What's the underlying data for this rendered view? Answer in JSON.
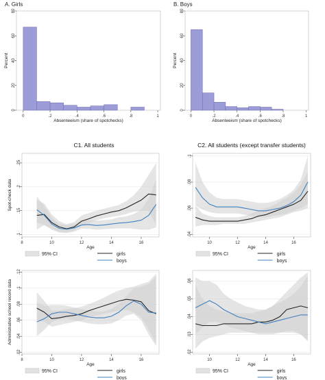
{
  "colors": {
    "histogram_bar": "#9c9cd9",
    "histogram_bar_stroke": "#6b6bb0",
    "girls_line": "#222222",
    "boys_line": "#3f7fbf",
    "ci_fill": "#cfcfcf",
    "axis": "#444444",
    "gridline": "#e8e8e8"
  },
  "chart_data": [
    {
      "id": "girls-hist",
      "type": "bar",
      "panel_label": "A. Girls",
      "xlabel": "Absenteeism (share of spotchecks)",
      "ylabel": "Percent",
      "bin_width": 0.1,
      "bin_starts": [
        0,
        0.1,
        0.2,
        0.3,
        0.4,
        0.5,
        0.6,
        0.7,
        0.8,
        0.9
      ],
      "values": [
        67,
        7,
        6,
        4,
        2.5,
        3.5,
        4.5,
        0,
        2.5,
        0
      ],
      "xlim": [
        -0.05,
        1.02
      ],
      "ylim": [
        0,
        80
      ],
      "xticks": [
        0,
        0.2,
        0.4,
        0.6,
        0.8,
        1
      ],
      "xtick_labels": [
        "0",
        ".2",
        ".4",
        ".6",
        ".8",
        "1"
      ],
      "yticks": [
        0,
        20,
        40,
        60,
        80
      ],
      "ytick_labels": [
        "0",
        "20",
        "40",
        "60",
        "80"
      ]
    },
    {
      "id": "boys-hist",
      "type": "bar",
      "panel_label": "B. Boys",
      "xlabel": "Absenteeism (share of spotchecks)",
      "ylabel": "Percent",
      "bin_width": 0.1,
      "bin_starts": [
        0,
        0.1,
        0.2,
        0.3,
        0.4,
        0.5,
        0.6,
        0.7,
        0.8,
        0.9
      ],
      "values": [
        65,
        14,
        6.5,
        3,
        2,
        3,
        2.5,
        0.8,
        0,
        0
      ],
      "xlim": [
        -0.05,
        1.02
      ],
      "ylim": [
        0,
        80
      ],
      "xticks": [
        0,
        0.2,
        0.4,
        0.6,
        0.8,
        1
      ],
      "xtick_labels": [
        "0",
        ".2",
        ".4",
        ".6",
        ".8",
        "1"
      ],
      "yticks": [
        0,
        20,
        40,
        60,
        80
      ],
      "ytick_labels": [
        "0",
        "20",
        "40",
        "60",
        "80"
      ]
    },
    {
      "id": "c1-spot",
      "type": "line",
      "panel_label": "C1. All students",
      "ylabel": "Spot-check data",
      "xlabel": "Age",
      "xlim": [
        8,
        17.2
      ],
      "ylim": [
        0.095,
        0.27
      ],
      "xticks": [
        8,
        10,
        12,
        14,
        16
      ],
      "xtick_labels": [
        "8",
        "10",
        "12",
        "14",
        "16"
      ],
      "yticks": [
        0.1,
        0.15,
        0.2,
        0.25
      ],
      "ytick_labels": [
        ".1",
        ".15",
        ".2",
        ".25"
      ],
      "x": [
        9,
        9.5,
        10,
        10.5,
        11,
        11.5,
        12,
        12.5,
        13,
        13.5,
        14,
        14.5,
        15,
        15.5,
        16,
        16.5,
        17
      ],
      "series": [
        {
          "name": "girls",
          "values": [
            0.14,
            0.142,
            0.125,
            0.116,
            0.112,
            0.116,
            0.128,
            0.133,
            0.139,
            0.143,
            0.147,
            0.15,
            0.156,
            0.164,
            0.172,
            0.185,
            0.183
          ],
          "ci_low": [
            0.11,
            0.12,
            0.112,
            0.106,
            0.104,
            0.108,
            0.118,
            0.124,
            0.13,
            0.134,
            0.137,
            0.139,
            0.143,
            0.148,
            0.15,
            0.15,
            0.12
          ],
          "ci_high": [
            0.172,
            0.165,
            0.142,
            0.128,
            0.122,
            0.126,
            0.14,
            0.145,
            0.15,
            0.154,
            0.158,
            0.162,
            0.17,
            0.182,
            0.2,
            0.225,
            0.25
          ]
        },
        {
          "name": "boys",
          "values": [
            0.152,
            0.14,
            0.122,
            0.113,
            0.111,
            0.114,
            0.12,
            0.121,
            0.119,
            0.12,
            0.122,
            0.124,
            0.125,
            0.127,
            0.13,
            0.14,
            0.163
          ],
          "ci_low": [
            0.125,
            0.12,
            0.11,
            0.104,
            0.103,
            0.106,
            0.112,
            0.112,
            0.11,
            0.111,
            0.112,
            0.113,
            0.113,
            0.112,
            0.11,
            0.11,
            0.115
          ],
          "ci_high": [
            0.18,
            0.16,
            0.135,
            0.122,
            0.12,
            0.122,
            0.129,
            0.13,
            0.129,
            0.13,
            0.132,
            0.136,
            0.138,
            0.143,
            0.152,
            0.175,
            0.215
          ]
        }
      ]
    },
    {
      "id": "c2-spot",
      "type": "line",
      "panel_label": "C2. All students (except transfer students)",
      "ylabel": "",
      "xlabel": "Age",
      "xlim": [
        8.8,
        17.2
      ],
      "ylim": [
        0.038,
        0.102
      ],
      "xticks": [
        10,
        12,
        14,
        16
      ],
      "xtick_labels": [
        "10",
        "12",
        "14",
        "16"
      ],
      "yticks": [
        0.04,
        0.06,
        0.08,
        0.1
      ],
      "ytick_labels": [
        ".04",
        ".06",
        ".08",
        ".1"
      ],
      "x": [
        9,
        9.5,
        10,
        10.5,
        11,
        11.5,
        12,
        12.5,
        13,
        13.5,
        14,
        14.5,
        15,
        15.5,
        16,
        16.5,
        17
      ],
      "series": [
        {
          "name": "girls",
          "values": [
            0.053,
            0.051,
            0.05,
            0.05,
            0.05,
            0.05,
            0.05,
            0.051,
            0.052,
            0.054,
            0.055,
            0.057,
            0.059,
            0.061,
            0.063,
            0.066,
            0.073
          ],
          "ci_low": [
            0.046,
            0.047,
            0.047,
            0.047,
            0.048,
            0.048,
            0.048,
            0.048,
            0.049,
            0.05,
            0.051,
            0.052,
            0.053,
            0.055,
            0.057,
            0.058,
            0.06
          ],
          "ci_high": [
            0.062,
            0.056,
            0.054,
            0.053,
            0.053,
            0.053,
            0.053,
            0.054,
            0.056,
            0.058,
            0.06,
            0.062,
            0.065,
            0.068,
            0.072,
            0.078,
            0.088
          ]
        },
        {
          "name": "boys",
          "values": [
            0.076,
            0.068,
            0.063,
            0.061,
            0.061,
            0.061,
            0.061,
            0.06,
            0.059,
            0.058,
            0.058,
            0.059,
            0.06,
            0.062,
            0.065,
            0.07,
            0.08
          ],
          "ci_low": [
            0.062,
            0.059,
            0.057,
            0.056,
            0.056,
            0.056,
            0.056,
            0.055,
            0.054,
            0.053,
            0.053,
            0.054,
            0.055,
            0.056,
            0.058,
            0.06,
            0.063
          ],
          "ci_high": [
            0.095,
            0.08,
            0.072,
            0.068,
            0.067,
            0.067,
            0.067,
            0.066,
            0.065,
            0.064,
            0.064,
            0.065,
            0.067,
            0.07,
            0.074,
            0.082,
            0.1
          ]
        }
      ]
    },
    {
      "id": "c1-admin",
      "type": "line",
      "panel_label": "",
      "ylabel": "Administrative school record data",
      "xlabel": "Age",
      "xlim": [
        8,
        17.2
      ],
      "ylim": [
        0.018,
        0.122
      ],
      "xticks": [
        8,
        10,
        12,
        14,
        16
      ],
      "xtick_labels": [
        "8",
        "10",
        "12",
        "14",
        "16"
      ],
      "yticks": [
        0.02,
        0.04,
        0.06,
        0.08,
        0.1,
        0.12
      ],
      "ytick_labels": [
        ".02",
        ".04",
        ".06",
        ".08",
        ".1",
        ".12"
      ],
      "x": [
        9,
        9.5,
        10,
        10.5,
        11,
        11.5,
        12,
        12.5,
        13,
        13.5,
        14,
        14.5,
        15,
        15.5,
        16,
        16.5,
        17
      ],
      "series": [
        {
          "name": "girls",
          "values": [
            0.075,
            0.07,
            0.062,
            0.063,
            0.065,
            0.066,
            0.068,
            0.072,
            0.075,
            0.078,
            0.081,
            0.084,
            0.086,
            0.085,
            0.083,
            0.072,
            0.068
          ],
          "ci_low": [
            0.06,
            0.058,
            0.052,
            0.054,
            0.056,
            0.058,
            0.06,
            0.064,
            0.066,
            0.068,
            0.07,
            0.072,
            0.073,
            0.07,
            0.064,
            0.048,
            0.03
          ],
          "ci_high": [
            0.095,
            0.084,
            0.072,
            0.072,
            0.074,
            0.075,
            0.077,
            0.08,
            0.084,
            0.088,
            0.093,
            0.097,
            0.1,
            0.102,
            0.105,
            0.108,
            0.118
          ]
        },
        {
          "name": "boys",
          "values": [
            0.058,
            0.062,
            0.068,
            0.07,
            0.07,
            0.068,
            0.066,
            0.064,
            0.063,
            0.063,
            0.065,
            0.07,
            0.078,
            0.084,
            0.08,
            0.07,
            0.069
          ],
          "ci_low": [
            0.04,
            0.048,
            0.058,
            0.061,
            0.062,
            0.06,
            0.058,
            0.056,
            0.055,
            0.055,
            0.056,
            0.06,
            0.066,
            0.068,
            0.06,
            0.042,
            0.028
          ],
          "ci_high": [
            0.082,
            0.078,
            0.079,
            0.079,
            0.078,
            0.076,
            0.074,
            0.072,
            0.071,
            0.071,
            0.074,
            0.08,
            0.09,
            0.1,
            0.102,
            0.105,
            0.115
          ]
        }
      ]
    },
    {
      "id": "c2-admin",
      "type": "line",
      "panel_label": "",
      "ylabel": "",
      "xlabel": "Age",
      "xlim": [
        8.8,
        17.2
      ],
      "ylim": [
        0.019,
        0.066
      ],
      "xticks": [
        10,
        12,
        14,
        16
      ],
      "xtick_labels": [
        "10",
        "12",
        "14",
        "16"
      ],
      "yticks": [
        0.02,
        0.03,
        0.04,
        0.05,
        0.06
      ],
      "ytick_labels": [
        ".02",
        ".03",
        ".04",
        ".05",
        ".06"
      ],
      "x": [
        9,
        9.5,
        10,
        10.5,
        11,
        11.5,
        12,
        12.5,
        13,
        13.5,
        14,
        14.5,
        15,
        15.5,
        16,
        16.5,
        17
      ],
      "series": [
        {
          "name": "girls",
          "values": [
            0.036,
            0.035,
            0.035,
            0.035,
            0.036,
            0.036,
            0.036,
            0.036,
            0.036,
            0.037,
            0.037,
            0.038,
            0.04,
            0.044,
            0.045,
            0.046,
            0.045
          ],
          "ci_low": [
            0.022,
            0.026,
            0.028,
            0.029,
            0.03,
            0.031,
            0.031,
            0.031,
            0.031,
            0.031,
            0.031,
            0.031,
            0.031,
            0.032,
            0.032,
            0.03,
            0.026
          ],
          "ci_high": [
            0.058,
            0.05,
            0.046,
            0.044,
            0.043,
            0.042,
            0.042,
            0.042,
            0.042,
            0.043,
            0.044,
            0.046,
            0.05,
            0.054,
            0.058,
            0.062,
            0.065
          ]
        },
        {
          "name": "boys",
          "values": [
            0.045,
            0.047,
            0.049,
            0.047,
            0.044,
            0.042,
            0.04,
            0.039,
            0.038,
            0.037,
            0.036,
            0.037,
            0.038,
            0.039,
            0.04,
            0.041,
            0.041
          ],
          "ci_low": [
            0.03,
            0.034,
            0.037,
            0.037,
            0.036,
            0.034,
            0.033,
            0.032,
            0.031,
            0.03,
            0.03,
            0.03,
            0.031,
            0.031,
            0.031,
            0.03,
            0.027
          ],
          "ci_high": [
            0.062,
            0.06,
            0.06,
            0.058,
            0.053,
            0.05,
            0.048,
            0.046,
            0.045,
            0.044,
            0.044,
            0.046,
            0.048,
            0.05,
            0.053,
            0.057,
            0.063
          ]
        }
      ]
    }
  ],
  "legend": {
    "ci_label": "95% CI",
    "girls_label": "girls",
    "boys_label": "boys"
  }
}
